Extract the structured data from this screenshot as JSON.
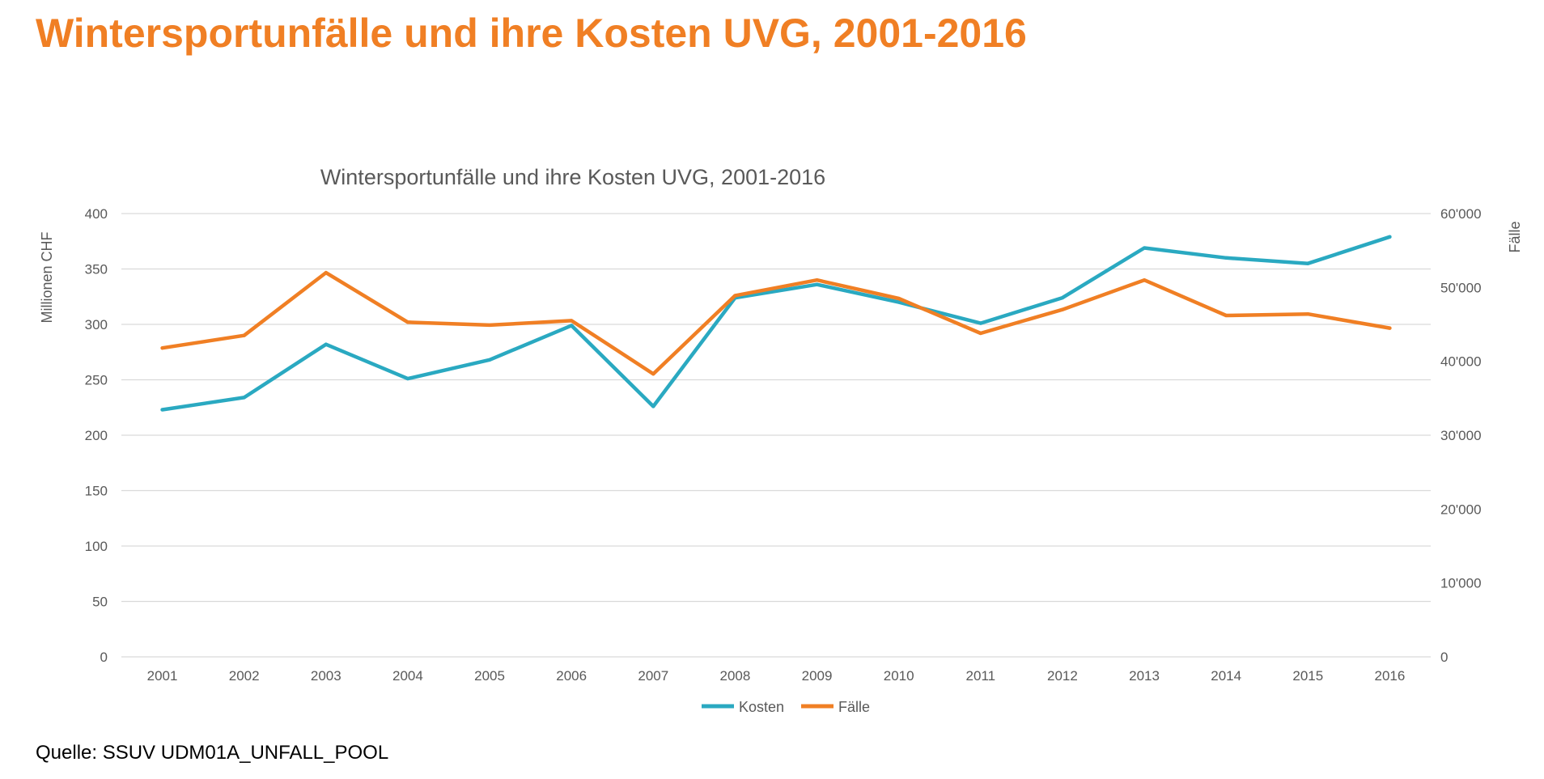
{
  "slide": {
    "title": "Wintersportunfälle und ihre Kosten UVG, 2001-2016",
    "source": "Quelle: SSUV UDM01A_UNFALL_POOL"
  },
  "chart_data": {
    "type": "line",
    "title": "Wintersportunfälle und ihre Kosten UVG, 2001-2016",
    "categories": [
      "2001",
      "2002",
      "2003",
      "2004",
      "2005",
      "2006",
      "2007",
      "2008",
      "2009",
      "2010",
      "2011",
      "2012",
      "2013",
      "2014",
      "2015",
      "2016"
    ],
    "y_left": {
      "label": "Millionen CHF",
      "range": [
        0,
        400
      ],
      "ticks": [
        "0",
        "50",
        "100",
        "150",
        "200",
        "250",
        "300",
        "350",
        "400"
      ]
    },
    "y_right": {
      "label": "Fälle",
      "range": [
        0,
        60000
      ],
      "ticks": [
        "0",
        "10'000",
        "20'000",
        "30'000",
        "40'000",
        "50'000",
        "60'000"
      ]
    },
    "series": [
      {
        "name": "Kosten",
        "axis": "left",
        "color": "#2aa9c1",
        "values": [
          223,
          234,
          282,
          251,
          268,
          299,
          226,
          324,
          336,
          320,
          301,
          324,
          369,
          360,
          355,
          379
        ]
      },
      {
        "name": "Fälle",
        "axis": "right",
        "color": "#f07f24",
        "values": [
          41800,
          43500,
          52000,
          45300,
          44900,
          45500,
          38300,
          48900,
          51000,
          48500,
          43800,
          47000,
          51000,
          46200,
          46400,
          44500
        ]
      }
    ],
    "grid": true,
    "legend": "bottom"
  },
  "style": {
    "title_color": "#f07f24",
    "chart_title_color": "#595959",
    "axis_text_color": "#595959",
    "gridline_color": "#d9d9d9"
  }
}
